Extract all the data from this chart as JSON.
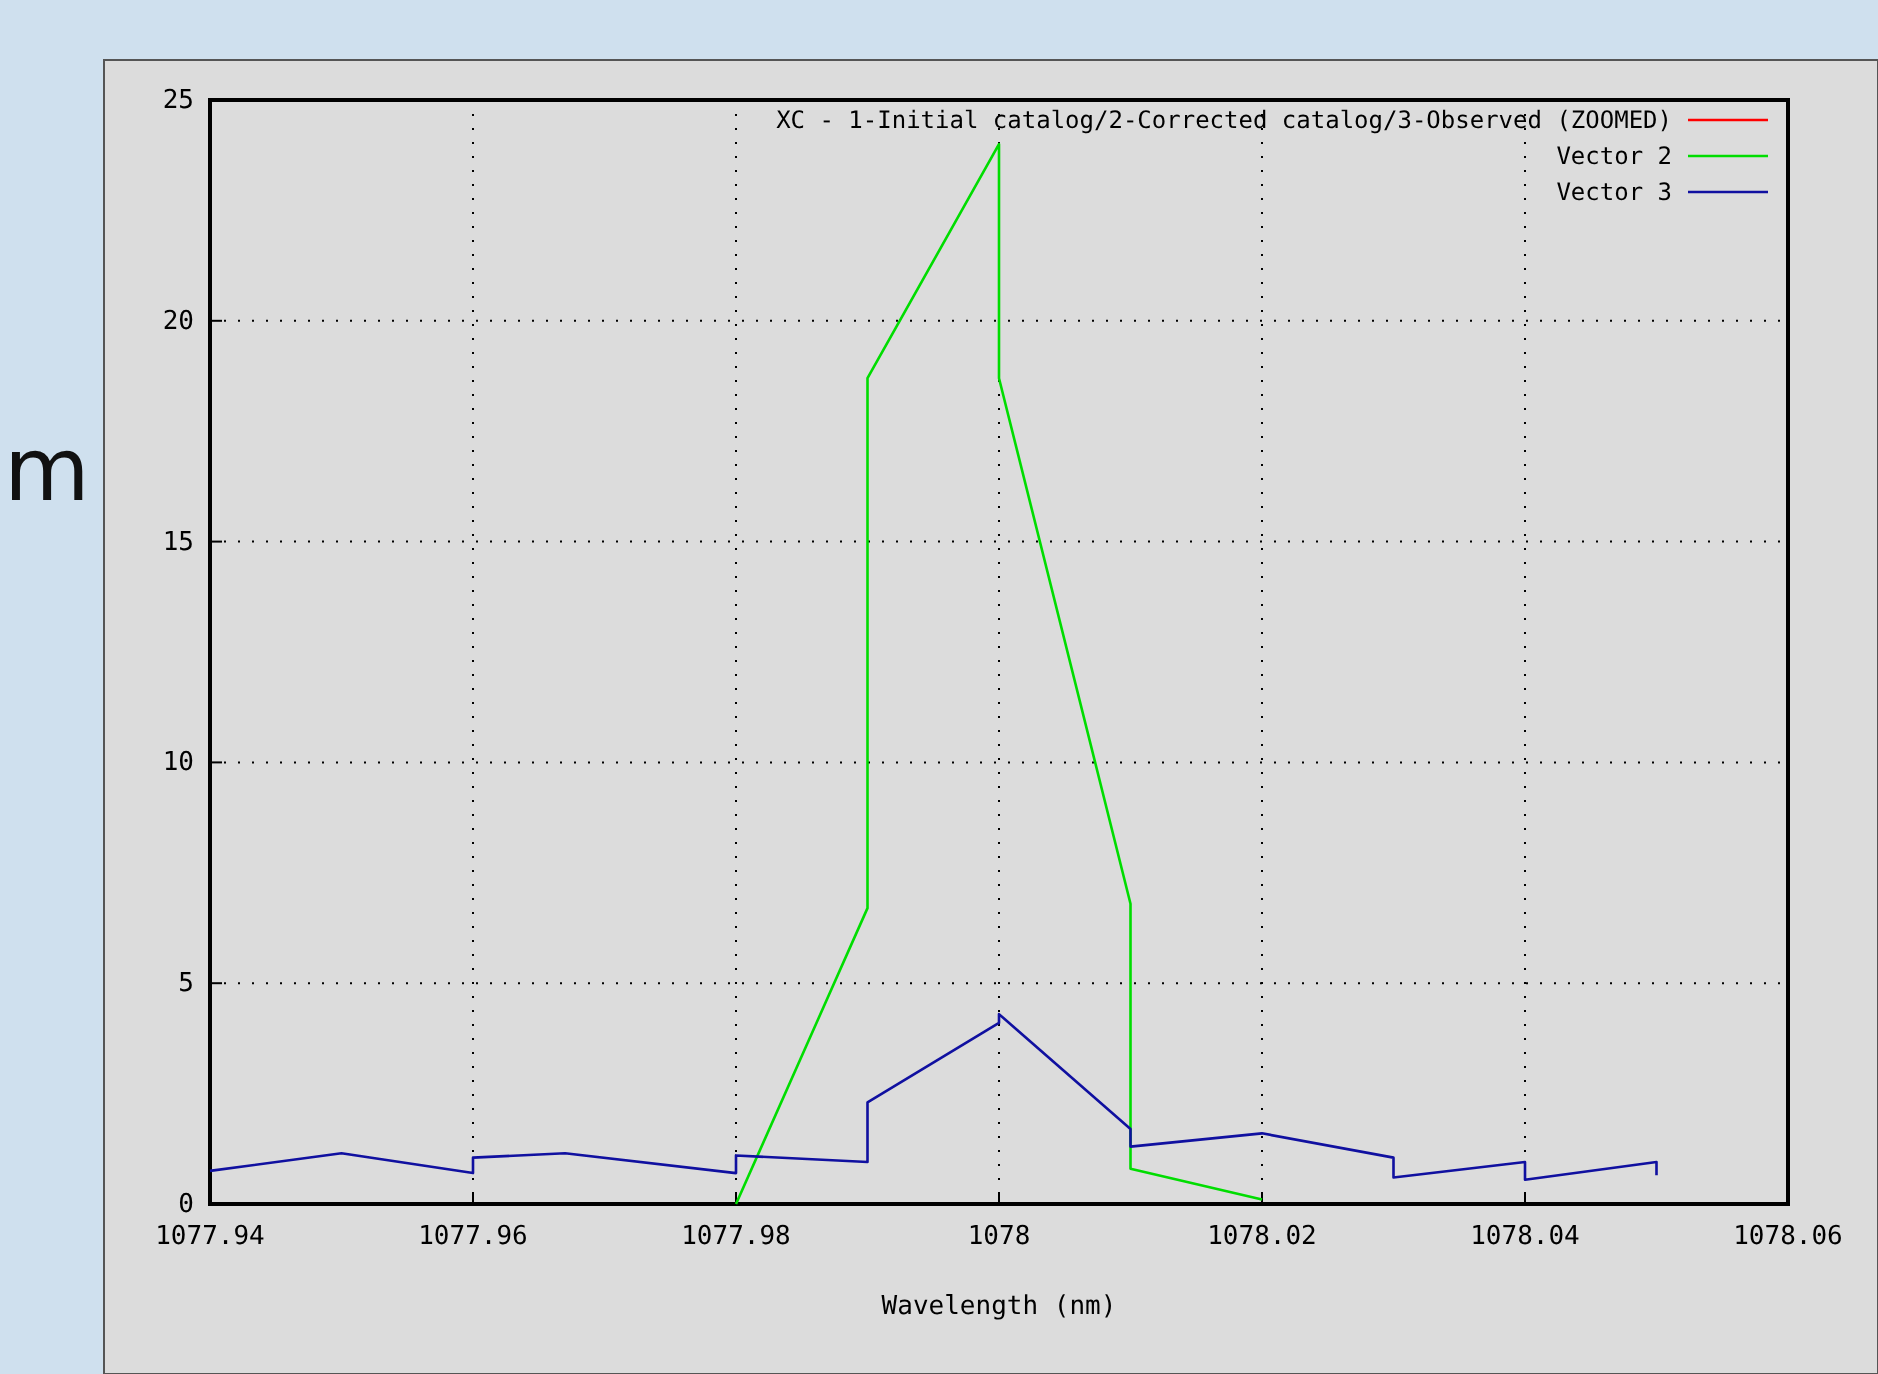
{
  "chart_data": {
    "type": "line",
    "xlabel": "Wavelength (nm)",
    "xlim": [
      1077.94,
      1078.06
    ],
    "xticks": [
      1077.94,
      1077.96,
      1077.98,
      1078,
      1078.02,
      1078.04,
      1078.06
    ],
    "ylim": [
      0,
      25
    ],
    "yticks": [
      0,
      5,
      10,
      15,
      20,
      25
    ],
    "grid": true,
    "legend": "top right",
    "annotations": [
      "m"
    ],
    "series": [
      {
        "name": "XC - 1-Initial catalog/2-Corrected catalog/3-Observed (ZOOMED)",
        "color": "#ff0000"
      },
      {
        "name": "Vector 2",
        "color": "#00dd00",
        "x": [
          1077.98,
          1077.99,
          1077.99,
          1078,
          1078,
          1078.01,
          1078.01,
          1078.02
        ],
        "values": [
          0,
          6.7,
          18.7,
          24,
          18.7,
          6.8,
          0.8,
          0.1
        ]
      },
      {
        "name": "Vector 3",
        "color": "#1010a0",
        "x": [
          1077.94,
          1077.95,
          1077.96,
          1077.96,
          1077.967,
          1077.98,
          1077.98,
          1077.99,
          1077.99,
          1078,
          1078,
          1078.01,
          1078.01,
          1078.02,
          1078.03,
          1078.03,
          1078.04,
          1078.04,
          1078.05,
          1078.05
        ],
        "values": [
          0.75,
          1.15,
          0.7,
          1.05,
          1.15,
          0.7,
          1.1,
          0.95,
          2.3,
          4.1,
          4.3,
          1.7,
          1.3,
          1.6,
          1.05,
          0.6,
          0.95,
          0.55,
          0.95,
          0.65
        ]
      }
    ]
  }
}
